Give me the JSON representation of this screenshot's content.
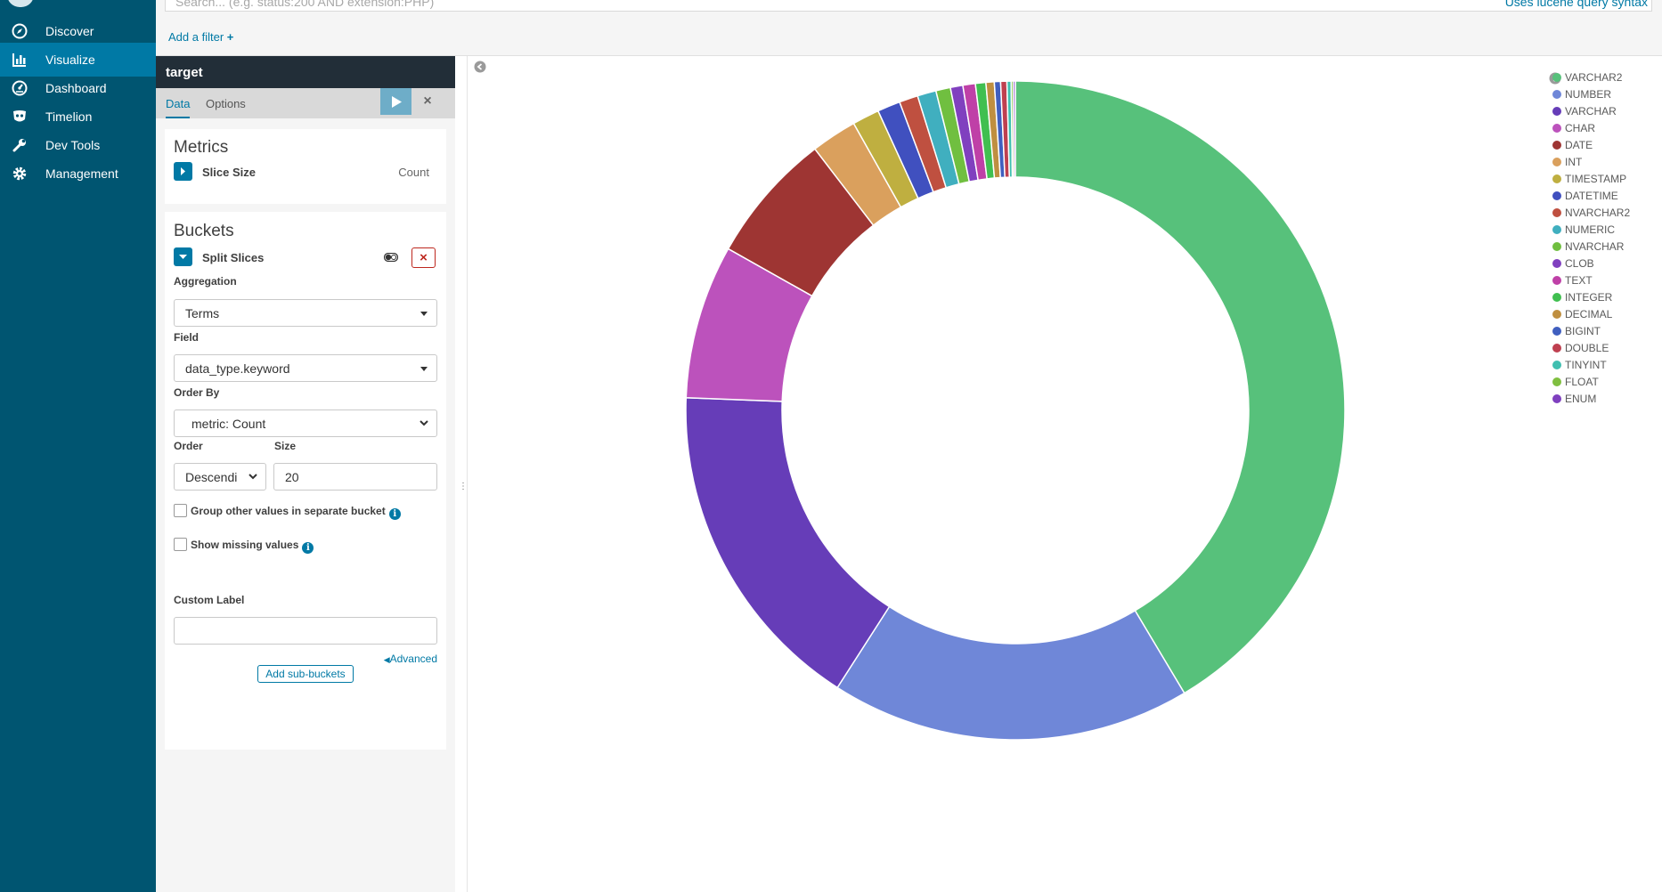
{
  "nav": {
    "items": [
      {
        "label": "Discover",
        "icon": "compass-icon",
        "active": false
      },
      {
        "label": "Visualize",
        "icon": "bar-chart-icon",
        "active": true
      },
      {
        "label": "Dashboard",
        "icon": "dashboard-gauge-icon",
        "active": false
      },
      {
        "label": "Timelion",
        "icon": "timelion-mask-icon",
        "active": false
      },
      {
        "label": "Dev Tools",
        "icon": "wrench-icon",
        "active": false
      },
      {
        "label": "Management",
        "icon": "gear-icon",
        "active": false
      }
    ]
  },
  "query": {
    "placeholder": "Search... (e.g. status:200 AND extension:PHP)",
    "syntax_link": "Uses lucene query syntax"
  },
  "filter": {
    "add_label": "Add a filter"
  },
  "editor": {
    "title": "target",
    "tabs": {
      "data": "Data",
      "options": "Options"
    },
    "metrics": {
      "heading": "Metrics",
      "agg_title": "Slice Size",
      "agg_value": "Count"
    },
    "buckets": {
      "heading": "Buckets",
      "agg_title": "Split Slices",
      "aggregation_label": "Aggregation",
      "aggregation_value": "Terms",
      "field_label": "Field",
      "field_value": "data_type.keyword",
      "order_by_label": "Order By",
      "order_by_value": "metric: Count",
      "order_label": "Order",
      "order_value": "Descendi",
      "size_label": "Size",
      "size_value": "20",
      "group_other_label": "Group other values in separate bucket",
      "show_missing_label": "Show missing values",
      "custom_label_label": "Custom Label",
      "custom_label_value": "",
      "advanced_label": "Advanced",
      "add_sub_buckets_label": "Add sub-buckets"
    }
  },
  "chart_data": {
    "type": "pie",
    "donut": true,
    "legend_position": "top-right",
    "categories": [
      "VARCHAR2",
      "NUMBER",
      "VARCHAR",
      "CHAR",
      "DATE",
      "INT",
      "TIMESTAMP",
      "DATETIME",
      "NVARCHAR2",
      "NUMERIC",
      "NVARCHAR",
      "CLOB",
      "TEXT",
      "INTEGER",
      "DECIMAL",
      "BIGINT",
      "DOUBLE",
      "TINYINT",
      "FLOAT",
      "ENUM"
    ],
    "values": [
      40.6,
      17.3,
      16.2,
      7.4,
      6.3,
      2.2,
      1.3,
      1.1,
      0.9,
      0.9,
      0.7,
      0.6,
      0.6,
      0.5,
      0.4,
      0.3,
      0.3,
      0.2,
      0.1,
      0.1
    ],
    "colors": [
      "#57c17b",
      "#6f87d8",
      "#663db8",
      "#bc52bc",
      "#9e3533",
      "#daa05d",
      "#bfaf40",
      "#4050bf",
      "#bf5040",
      "#40afbf",
      "#70bf40",
      "#8040bf",
      "#bf40a7",
      "#40bf50",
      "#bf8f40",
      "#405fbf",
      "#bf4050",
      "#40bfb0",
      "#80bf40",
      "#7f40bf"
    ]
  }
}
